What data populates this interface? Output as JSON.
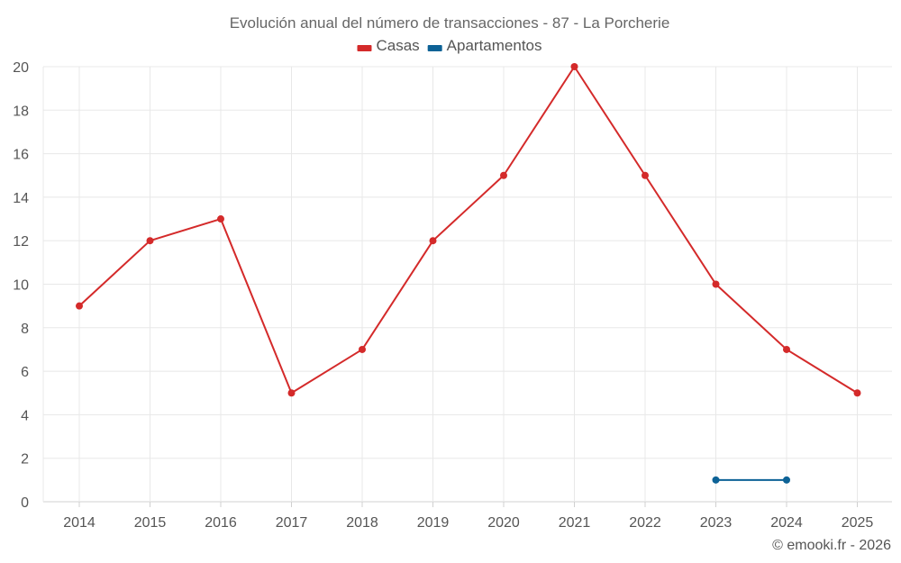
{
  "chart_data": {
    "type": "line",
    "title": "Evolución anual del número de transacciones - 87 - La Porcherie",
    "categories": [
      "2014",
      "2015",
      "2016",
      "2017",
      "2018",
      "2019",
      "2020",
      "2021",
      "2022",
      "2023",
      "2024",
      "2025"
    ],
    "series": [
      {
        "name": "Casas",
        "color": "#d42a2a",
        "values": [
          9,
          12,
          13,
          5,
          7,
          12,
          15,
          20,
          15,
          10,
          7,
          5
        ]
      },
      {
        "name": "Apartamentos",
        "color": "#0d6296",
        "values": [
          null,
          null,
          null,
          null,
          null,
          null,
          null,
          null,
          null,
          1,
          1,
          null
        ]
      }
    ],
    "ylim": [
      0,
      20
    ],
    "yticks": [
      0,
      2,
      4,
      6,
      8,
      10,
      12,
      14,
      16,
      18,
      20
    ],
    "xlabel": "",
    "ylabel": "",
    "grid": true,
    "legend_position": "top-center"
  },
  "credit": "© emooki.fr - 2026"
}
